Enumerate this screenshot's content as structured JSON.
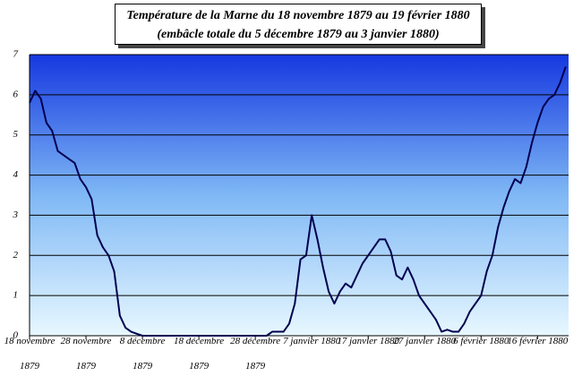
{
  "chart_data": {
    "type": "line",
    "title": "Température de la Marne du 18 novembre 1879 au 19 février 1880",
    "subtitle": "(embâcle totale du 5 décembre 1879 au 3 janvier 1880)",
    "x": [
      0,
      1,
      2,
      3,
      4,
      5,
      6,
      7,
      8,
      9,
      10,
      11,
      12,
      13,
      14,
      15,
      16,
      17,
      18,
      19,
      20,
      21,
      22,
      23,
      24,
      25,
      26,
      27,
      28,
      29,
      30,
      31,
      32,
      33,
      34,
      35,
      36,
      37,
      38,
      39,
      40,
      41,
      42,
      43,
      44,
      45,
      46,
      47,
      48,
      49,
      50,
      51,
      52,
      53,
      54,
      55,
      56,
      57,
      58,
      59,
      60,
      61,
      62,
      63,
      64,
      65,
      66,
      67,
      68,
      69,
      70,
      71,
      72,
      73,
      74,
      75,
      76,
      77,
      78,
      79,
      80,
      81,
      82,
      83,
      84,
      85,
      86,
      87,
      88,
      89,
      90,
      91,
      92,
      93,
      94,
      95
    ],
    "values": [
      5.8,
      6.1,
      5.9,
      5.3,
      5.1,
      4.6,
      4.5,
      4.4,
      4.3,
      3.9,
      3.7,
      3.4,
      2.5,
      2.2,
      2.0,
      1.6,
      0.5,
      0.2,
      0.1,
      0.05,
      0,
      0,
      0,
      0,
      0,
      0,
      0,
      0,
      0,
      0,
      0,
      0,
      0,
      0,
      0,
      0,
      0,
      0,
      0,
      0,
      0,
      0,
      0,
      0.1,
      0.1,
      0.1,
      0.3,
      0.8,
      1.9,
      2.0,
      3.0,
      2.4,
      1.7,
      1.1,
      0.8,
      1.1,
      1.3,
      1.2,
      1.5,
      1.8,
      2.0,
      2.2,
      2.4,
      2.4,
      2.1,
      1.5,
      1.4,
      1.7,
      1.4,
      1.0,
      0.8,
      0.6,
      0.4,
      0.1,
      0.15,
      0.1,
      0.1,
      0.3,
      0.6,
      0.8,
      1.0,
      1.6,
      2.0,
      2.7,
      3.2,
      3.6,
      3.9,
      3.8,
      4.2,
      4.8,
      5.3,
      5.7,
      5.9,
      6.0,
      6.3,
      6.7
    ],
    "color": "#000050",
    "xlim": [
      0,
      95.5
    ],
    "xticks": [
      {
        "value": 0,
        "label": "18 novembre 1879"
      },
      {
        "value": 10,
        "label": "28 novembre 1879"
      },
      {
        "value": 20,
        "label": "8 décembre 1879"
      },
      {
        "value": 30,
        "label": "18 décembre 1879"
      },
      {
        "value": 40,
        "label": "28 décembre 1879"
      },
      {
        "value": 50,
        "label": "7 janvier 1880"
      },
      {
        "value": 60,
        "label": "17 janvier 1880"
      },
      {
        "value": 70,
        "label": "27 janvier 1880"
      },
      {
        "value": 80,
        "label": "6 février 1880"
      },
      {
        "value": 90,
        "label": "16 février 1880"
      }
    ],
    "ylim": [
      0,
      7
    ],
    "yticks": [
      0,
      1,
      2,
      3,
      4,
      5,
      6,
      7
    ],
    "grid": true
  }
}
